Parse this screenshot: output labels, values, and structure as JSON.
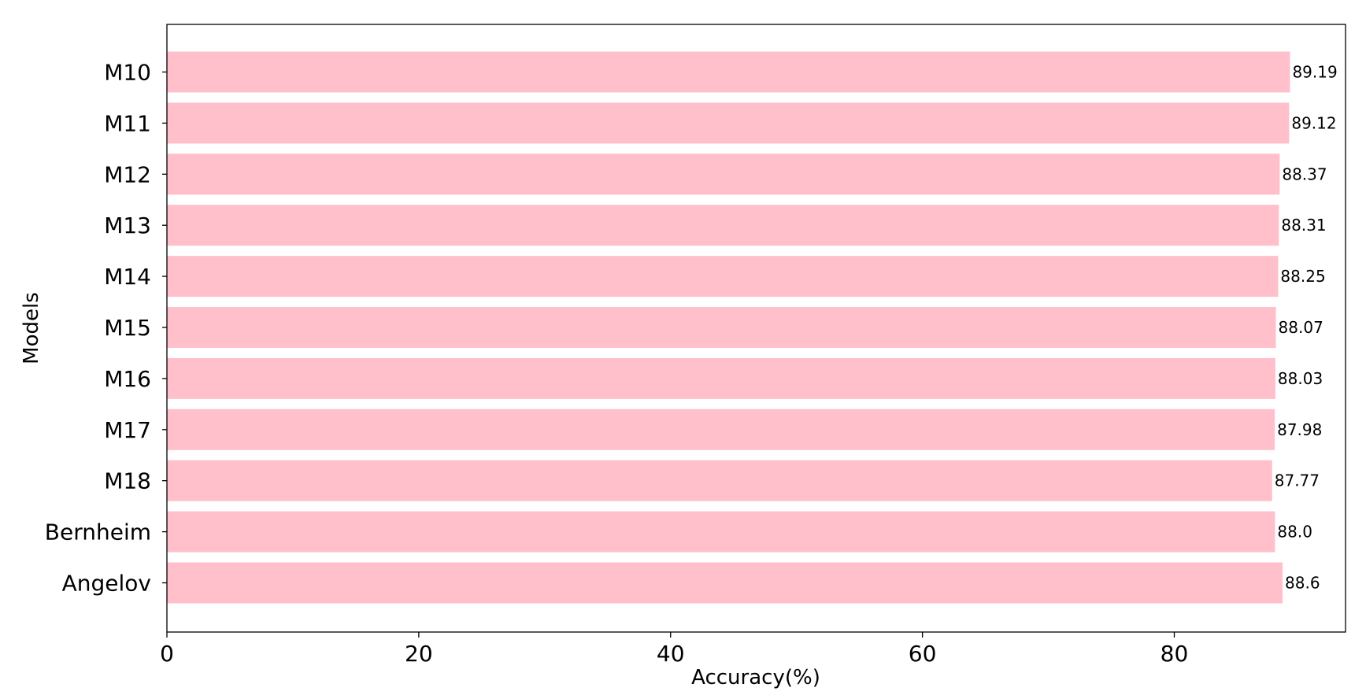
{
  "chart_data": {
    "type": "bar",
    "orientation": "horizontal",
    "categories": [
      "M10",
      "M11",
      "M12",
      "M13",
      "M14",
      "M15",
      "M16",
      "M17",
      "M18",
      "Bernheim",
      "Angelov"
    ],
    "values": [
      89.19,
      89.12,
      88.37,
      88.31,
      88.25,
      88.07,
      88.03,
      87.98,
      87.77,
      88.0,
      88.6
    ],
    "value_labels": [
      "89.19",
      "89.12",
      "88.37",
      "88.31",
      "88.25",
      "88.07",
      "88.03",
      "87.98",
      "87.77",
      "88.0",
      "88.6"
    ],
    "xlabel": "Accuracy(%)",
    "ylabel": "Models",
    "xlim": [
      0,
      93.6
    ],
    "xticks": [
      0,
      20,
      40,
      60,
      80
    ],
    "grid": false,
    "bar_color": "#ffc0cb"
  }
}
